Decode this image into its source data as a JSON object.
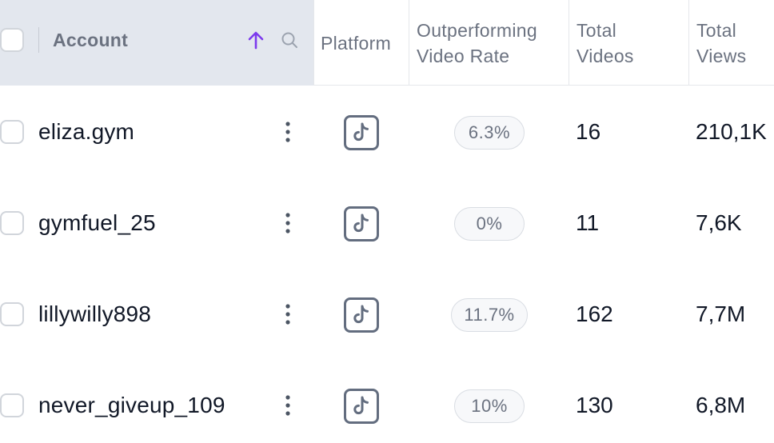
{
  "header": {
    "account": "Account",
    "platform": "Platform",
    "rate": "Outperforming\nVideo Rate",
    "videos": "Total\nVideos",
    "views": "Total\nViews"
  },
  "icons": {
    "sort": "arrow-up-icon",
    "search": "search-icon",
    "row_menu": "kebab-menu-icon",
    "platform": "tiktok-icon"
  },
  "colors": {
    "sort_accent": "#7c3aed",
    "header_bg": "#e3e7ee",
    "pill_border": "#d9dde3",
    "icon_gray": "#636d7f"
  },
  "rows": [
    {
      "account": "eliza.gym",
      "platform": "TikTok",
      "rate": "6.3%",
      "videos": "16",
      "views": "210,1K"
    },
    {
      "account": "gymfuel_25",
      "platform": "TikTok",
      "rate": "0%",
      "videos": "11",
      "views": "7,6K"
    },
    {
      "account": "lillywilly898",
      "platform": "TikTok",
      "rate": "11.7%",
      "videos": "162",
      "views": "7,7M"
    },
    {
      "account": "never_giveup_109",
      "platform": "TikTok",
      "rate": "10%",
      "videos": "130",
      "views": "6,8M"
    }
  ]
}
